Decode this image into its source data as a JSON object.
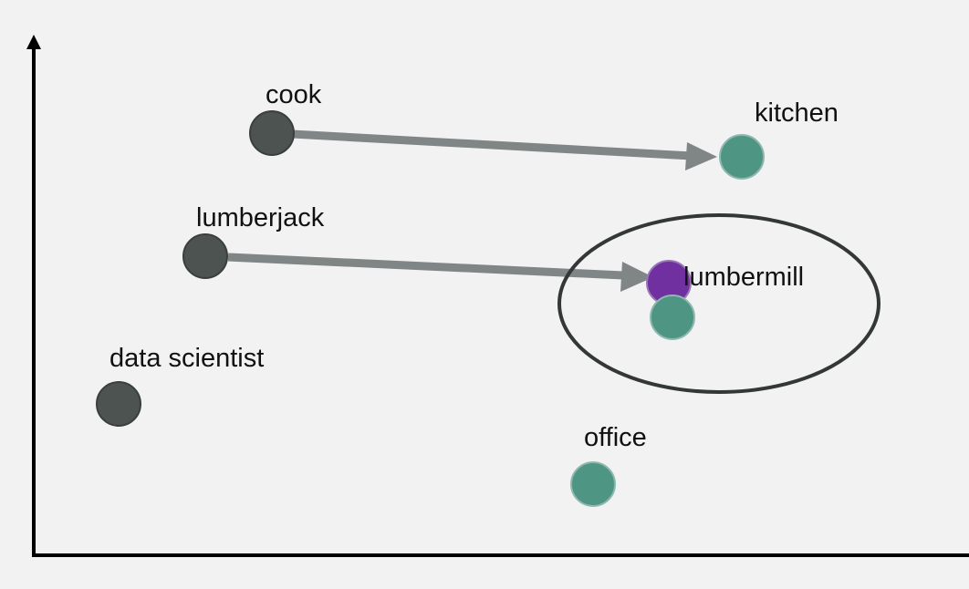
{
  "colors": {
    "background": "#f2f2f2",
    "axis": "#000000",
    "person_node": "#4d5351",
    "place_node": "#4f9584",
    "predicted_node": "#7030a0",
    "arrow": "#808685",
    "ellipse": "#333735"
  },
  "labels": {
    "cook": "cook",
    "kitchen": "kitchen",
    "lumberjack": "lumberjack",
    "lumbermill": "lumbermill",
    "data_scientist": "data scientist",
    "office": "office"
  }
}
